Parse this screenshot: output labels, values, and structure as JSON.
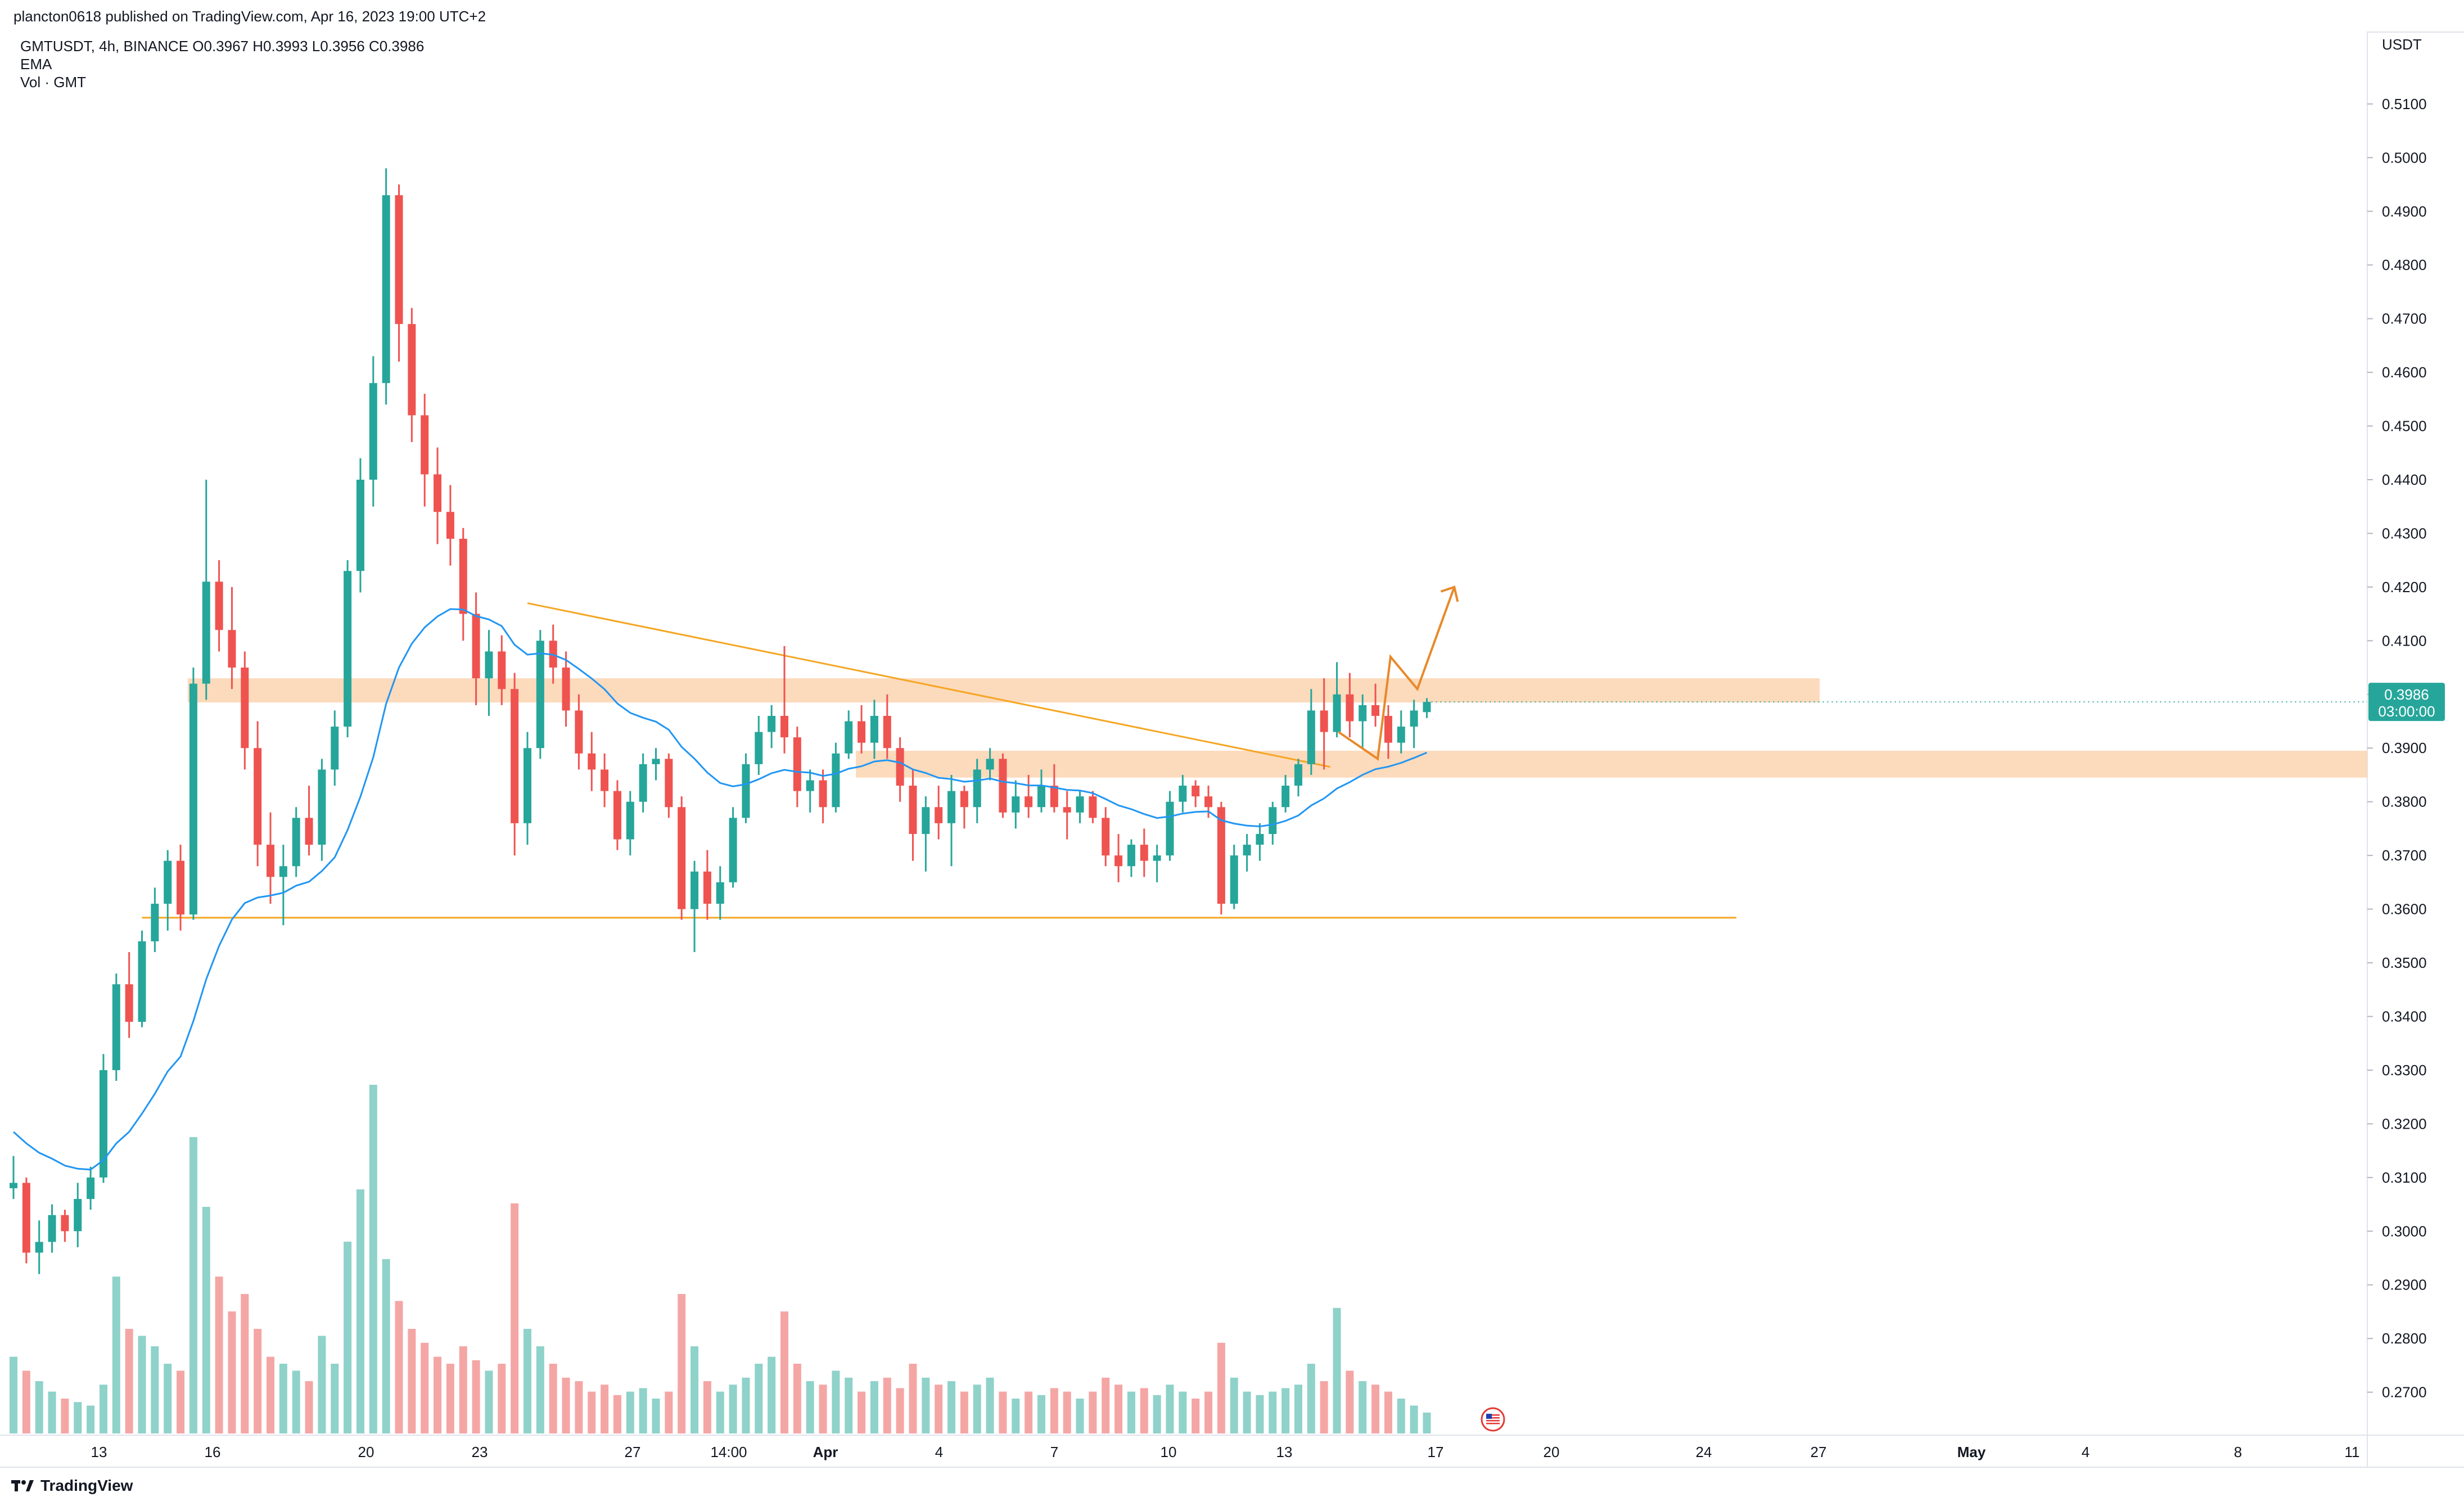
{
  "header": {
    "published": "plancton0618 published on TradingView.com, Apr 16, 2023 19:00 UTC+2"
  },
  "legend": {
    "symbol_line": "GMTUSDT, 4h, BINANCE  O0.3967  H0.3993  L0.3956  C0.3986",
    "ema_label": "EMA",
    "vol_label": "Vol · GMT"
  },
  "footer": {
    "brand": "TradingView"
  },
  "colors": {
    "up": "#26a69a",
    "down": "#ef5350",
    "ema": "#2196f3",
    "zone": "#fbd3b0",
    "trendline": "#f5a623",
    "projection": "#e8892b",
    "price_tag": "#26a69a",
    "vol_up": "#8fd2c9",
    "vol_down": "#f4a6a5"
  },
  "icons": {
    "brand": "tradingview-logo-icon",
    "event": "us-flag-event-icon"
  },
  "chart_data": {
    "type": "candlestick",
    "symbol": "GMTUSDT",
    "interval": "4h",
    "exchange": "BINANCE",
    "y_axis": {
      "unit": "USDT",
      "range": [
        0.262,
        0.5235
      ],
      "ticks": [
        "0.2700",
        "0.2800",
        "0.2900",
        "0.3000",
        "0.3100",
        "0.3200",
        "0.3300",
        "0.3400",
        "0.3500",
        "0.3600",
        "0.3700",
        "0.3800",
        "0.3900",
        "0.4000",
        "0.4100",
        "0.4200",
        "0.4300",
        "0.4400",
        "0.4500",
        "0.4600",
        "0.4700",
        "0.4800",
        "0.4900",
        "0.5000",
        "0.5100"
      ]
    },
    "x_axis": {
      "ticks": [
        "13",
        "16",
        "20",
        "23",
        "27",
        "14:00",
        "Apr",
        "4",
        "7",
        "10",
        "13",
        "17",
        "20",
        "24",
        "27",
        "May",
        "4",
        "8",
        "11"
      ]
    },
    "last_price": {
      "value": "0.3986",
      "countdown": "03:00:00"
    },
    "ohlc_last": {
      "open": 0.3967,
      "high": 0.3993,
      "low": 0.3956,
      "close": 0.3986
    },
    "candles": [
      [
        0.308,
        0.314,
        0.306,
        0.309
      ],
      [
        0.309,
        0.31,
        0.294,
        0.296
      ],
      [
        0.296,
        0.302,
        0.292,
        0.298
      ],
      [
        0.298,
        0.305,
        0.296,
        0.303
      ],
      [
        0.303,
        0.304,
        0.298,
        0.3
      ],
      [
        0.3,
        0.309,
        0.297,
        0.306
      ],
      [
        0.306,
        0.312,
        0.304,
        0.31
      ],
      [
        0.31,
        0.333,
        0.309,
        0.33
      ],
      [
        0.33,
        0.348,
        0.328,
        0.346
      ],
      [
        0.346,
        0.352,
        0.336,
        0.339
      ],
      [
        0.339,
        0.356,
        0.338,
        0.354
      ],
      [
        0.354,
        0.364,
        0.352,
        0.361
      ],
      [
        0.361,
        0.371,
        0.356,
        0.369
      ],
      [
        0.369,
        0.372,
        0.356,
        0.359
      ],
      [
        0.359,
        0.405,
        0.358,
        0.402
      ],
      [
        0.402,
        0.44,
        0.399,
        0.421
      ],
      [
        0.421,
        0.425,
        0.408,
        0.412
      ],
      [
        0.412,
        0.42,
        0.401,
        0.405
      ],
      [
        0.405,
        0.408,
        0.386,
        0.39
      ],
      [
        0.39,
        0.395,
        0.368,
        0.372
      ],
      [
        0.372,
        0.378,
        0.361,
        0.366
      ],
      [
        0.366,
        0.372,
        0.357,
        0.368
      ],
      [
        0.368,
        0.379,
        0.366,
        0.377
      ],
      [
        0.377,
        0.383,
        0.37,
        0.372
      ],
      [
        0.372,
        0.388,
        0.369,
        0.386
      ],
      [
        0.386,
        0.397,
        0.383,
        0.394
      ],
      [
        0.394,
        0.425,
        0.392,
        0.423
      ],
      [
        0.423,
        0.444,
        0.419,
        0.44
      ],
      [
        0.44,
        0.463,
        0.435,
        0.458
      ],
      [
        0.458,
        0.498,
        0.454,
        0.493
      ],
      [
        0.493,
        0.495,
        0.462,
        0.469
      ],
      [
        0.469,
        0.472,
        0.447,
        0.452
      ],
      [
        0.452,
        0.456,
        0.435,
        0.441
      ],
      [
        0.441,
        0.446,
        0.428,
        0.434
      ],
      [
        0.434,
        0.439,
        0.424,
        0.429
      ],
      [
        0.429,
        0.431,
        0.41,
        0.415
      ],
      [
        0.415,
        0.419,
        0.398,
        0.403
      ],
      [
        0.403,
        0.412,
        0.396,
        0.408
      ],
      [
        0.408,
        0.411,
        0.398,
        0.401
      ],
      [
        0.401,
        0.404,
        0.37,
        0.376
      ],
      [
        0.376,
        0.393,
        0.372,
        0.39
      ],
      [
        0.39,
        0.412,
        0.388,
        0.41
      ],
      [
        0.41,
        0.413,
        0.402,
        0.405
      ],
      [
        0.405,
        0.408,
        0.394,
        0.397
      ],
      [
        0.397,
        0.4,
        0.386,
        0.389
      ],
      [
        0.389,
        0.393,
        0.382,
        0.386
      ],
      [
        0.386,
        0.389,
        0.379,
        0.382
      ],
      [
        0.382,
        0.384,
        0.371,
        0.373
      ],
      [
        0.373,
        0.382,
        0.37,
        0.38
      ],
      [
        0.38,
        0.389,
        0.378,
        0.387
      ],
      [
        0.387,
        0.39,
        0.384,
        0.388
      ],
      [
        0.388,
        0.389,
        0.377,
        0.379
      ],
      [
        0.379,
        0.381,
        0.358,
        0.36
      ],
      [
        0.36,
        0.369,
        0.352,
        0.367
      ],
      [
        0.367,
        0.371,
        0.358,
        0.361
      ],
      [
        0.361,
        0.368,
        0.358,
        0.365
      ],
      [
        0.365,
        0.379,
        0.364,
        0.377
      ],
      [
        0.377,
        0.389,
        0.376,
        0.387
      ],
      [
        0.387,
        0.396,
        0.385,
        0.393
      ],
      [
        0.393,
        0.398,
        0.39,
        0.396
      ],
      [
        0.396,
        0.409,
        0.389,
        0.392
      ],
      [
        0.392,
        0.394,
        0.379,
        0.382
      ],
      [
        0.382,
        0.386,
        0.378,
        0.384
      ],
      [
        0.384,
        0.386,
        0.376,
        0.379
      ],
      [
        0.379,
        0.391,
        0.378,
        0.389
      ],
      [
        0.389,
        0.397,
        0.388,
        0.395
      ],
      [
        0.395,
        0.398,
        0.389,
        0.391
      ],
      [
        0.391,
        0.399,
        0.388,
        0.396
      ],
      [
        0.396,
        0.4,
        0.388,
        0.39
      ],
      [
        0.39,
        0.392,
        0.38,
        0.383
      ],
      [
        0.383,
        0.386,
        0.369,
        0.374
      ],
      [
        0.374,
        0.381,
        0.367,
        0.379
      ],
      [
        0.379,
        0.383,
        0.373,
        0.376
      ],
      [
        0.376,
        0.385,
        0.368,
        0.382
      ],
      [
        0.382,
        0.383,
        0.375,
        0.379
      ],
      [
        0.379,
        0.388,
        0.376,
        0.386
      ],
      [
        0.386,
        0.39,
        0.384,
        0.388
      ],
      [
        0.388,
        0.389,
        0.377,
        0.378
      ],
      [
        0.378,
        0.384,
        0.375,
        0.381
      ],
      [
        0.381,
        0.385,
        0.377,
        0.379
      ],
      [
        0.379,
        0.386,
        0.378,
        0.383
      ],
      [
        0.383,
        0.387,
        0.378,
        0.379
      ],
      [
        0.379,
        0.382,
        0.373,
        0.378
      ],
      [
        0.378,
        0.382,
        0.376,
        0.381
      ],
      [
        0.381,
        0.382,
        0.376,
        0.377
      ],
      [
        0.377,
        0.379,
        0.368,
        0.37
      ],
      [
        0.37,
        0.374,
        0.365,
        0.368
      ],
      [
        0.368,
        0.373,
        0.366,
        0.372
      ],
      [
        0.372,
        0.375,
        0.366,
        0.369
      ],
      [
        0.369,
        0.372,
        0.365,
        0.37
      ],
      [
        0.37,
        0.382,
        0.369,
        0.38
      ],
      [
        0.38,
        0.385,
        0.378,
        0.383
      ],
      [
        0.383,
        0.384,
        0.379,
        0.381
      ],
      [
        0.381,
        0.383,
        0.377,
        0.379
      ],
      [
        0.379,
        0.38,
        0.359,
        0.361
      ],
      [
        0.361,
        0.372,
        0.36,
        0.37
      ],
      [
        0.37,
        0.374,
        0.367,
        0.372
      ],
      [
        0.372,
        0.376,
        0.369,
        0.374
      ],
      [
        0.374,
        0.38,
        0.372,
        0.379
      ],
      [
        0.379,
        0.385,
        0.378,
        0.383
      ],
      [
        0.383,
        0.388,
        0.381,
        0.387
      ],
      [
        0.387,
        0.401,
        0.385,
        0.397
      ],
      [
        0.397,
        0.403,
        0.386,
        0.393
      ],
      [
        0.393,
        0.406,
        0.392,
        0.4
      ],
      [
        0.4,
        0.404,
        0.392,
        0.395
      ],
      [
        0.395,
        0.4,
        0.39,
        0.398
      ],
      [
        0.398,
        0.402,
        0.394,
        0.396
      ],
      [
        0.396,
        0.398,
        0.388,
        0.391
      ],
      [
        0.391,
        0.397,
        0.389,
        0.394
      ],
      [
        0.394,
        0.399,
        0.39,
        0.397
      ],
      [
        0.3967,
        0.3993,
        0.3956,
        0.3986
      ]
    ],
    "volume_relative": [
      0.22,
      0.18,
      0.15,
      0.12,
      0.1,
      0.09,
      0.08,
      0.14,
      0.45,
      0.3,
      0.28,
      0.25,
      0.2,
      0.18,
      0.85,
      0.65,
      0.45,
      0.35,
      0.4,
      0.3,
      0.22,
      0.2,
      0.18,
      0.15,
      0.28,
      0.2,
      0.55,
      0.7,
      1.0,
      0.5,
      0.38,
      0.3,
      0.26,
      0.22,
      0.2,
      0.25,
      0.21,
      0.18,
      0.2,
      0.66,
      0.3,
      0.25,
      0.2,
      0.16,
      0.15,
      0.12,
      0.14,
      0.11,
      0.12,
      0.13,
      0.1,
      0.12,
      0.4,
      0.25,
      0.15,
      0.12,
      0.14,
      0.16,
      0.2,
      0.22,
      0.35,
      0.2,
      0.15,
      0.14,
      0.18,
      0.16,
      0.12,
      0.15,
      0.16,
      0.13,
      0.2,
      0.16,
      0.14,
      0.15,
      0.12,
      0.14,
      0.16,
      0.12,
      0.1,
      0.12,
      0.11,
      0.13,
      0.12,
      0.1,
      0.12,
      0.16,
      0.14,
      0.12,
      0.13,
      0.11,
      0.14,
      0.12,
      0.1,
      0.12,
      0.26,
      0.16,
      0.12,
      0.11,
      0.12,
      0.13,
      0.14,
      0.2,
      0.15,
      0.36,
      0.18,
      0.15,
      0.14,
      0.12,
      0.1,
      0.08,
      0.06
    ],
    "indicators": {
      "ema_note": "EMA line overlay",
      "resistance_zone": [
        0.3985,
        0.403
      ],
      "support_zone": [
        0.3845,
        0.3895
      ],
      "support_line": 0.3584,
      "descending_trendline": [
        [
          0.417,
          0.3865
        ]
      ],
      "projection_path": [
        0.393,
        0.388,
        0.407,
        0.401,
        0.42
      ]
    }
  }
}
